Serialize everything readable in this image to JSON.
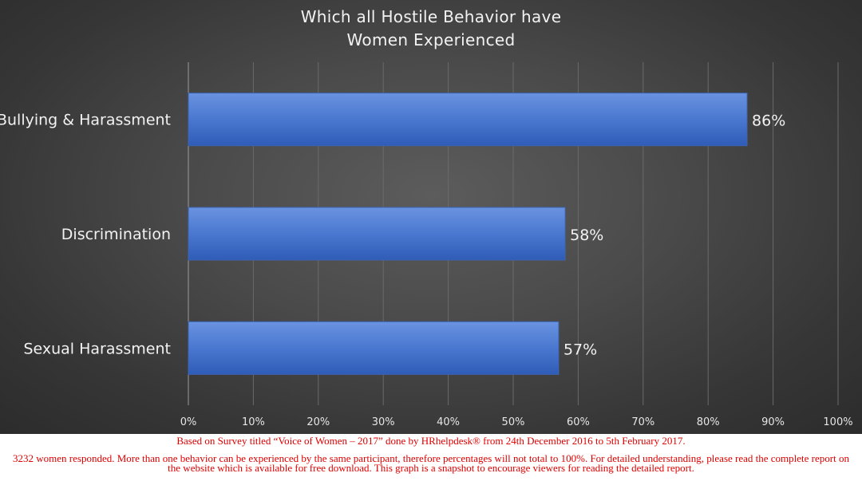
{
  "chart_data": {
    "type": "bar",
    "orientation": "horizontal",
    "title_lines": [
      "Which all Hostile Behavior have",
      "Women Experienced"
    ],
    "categories": [
      "Bullying & Harassment",
      "Discrimination",
      "Sexual Harassment"
    ],
    "values": [
      86,
      58,
      57
    ],
    "data_labels": [
      "86%",
      "58%",
      "57%"
    ],
    "x_ticks": [
      "0%",
      "10%",
      "20%",
      "30%",
      "40%",
      "50%",
      "60%",
      "70%",
      "80%",
      "90%",
      "100%"
    ],
    "xlim": [
      0,
      100
    ],
    "grid": true,
    "bar_color": "#4472c4",
    "background": "#4a4a4a"
  },
  "footer": {
    "line1": "Based on Survey titled “Voice of Women – 2017” done by HRhelpdesk® from 24th December 2016 to 5th February 2017.",
    "line2": "3232 women responded. More than one behavior can be experienced by the same participant, therefore percentages will not total to 100%. For detailed understanding, please read the complete report on the website which is available for free download. This graph is a snapshot to encourage viewers for reading the detailed report.",
    "color": "#e00000"
  }
}
